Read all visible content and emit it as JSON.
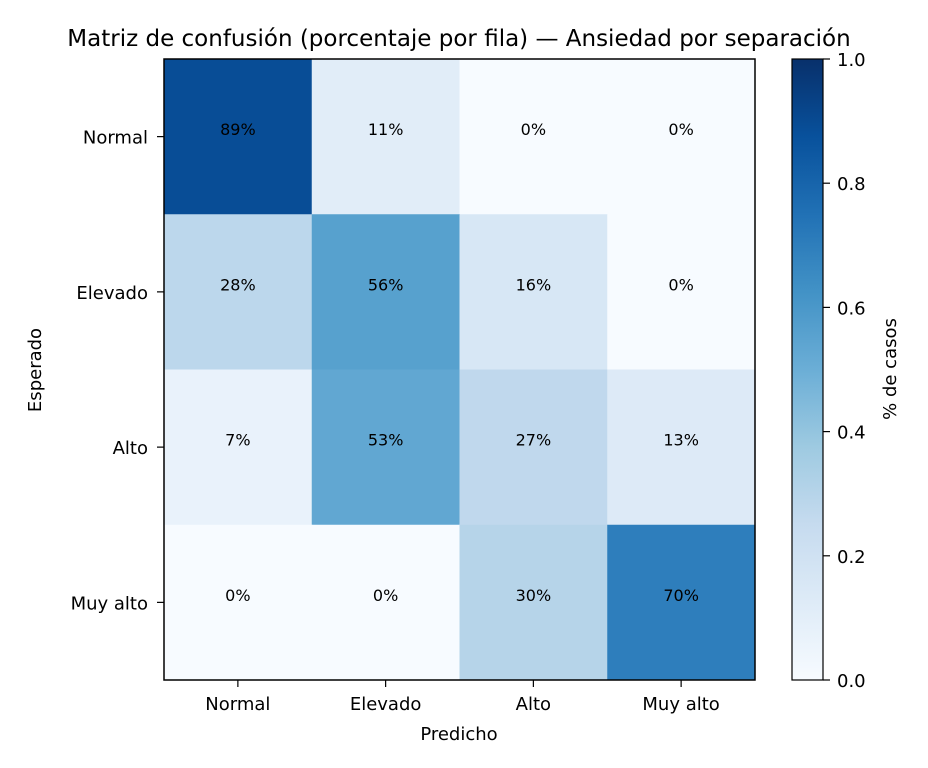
{
  "chart_data": {
    "type": "heatmap",
    "title": "Matriz de confusión (porcentaje por fila) — Ansiedad por separación",
    "xlabel": "Predicho",
    "ylabel": "Esperado",
    "x_categories": [
      "Normal",
      "Elevado",
      "Alto",
      "Muy alto"
    ],
    "y_categories": [
      "Normal",
      "Elevado",
      "Alto",
      "Muy alto"
    ],
    "values": [
      [
        0.89,
        0.11,
        0.0,
        0.0
      ],
      [
        0.28,
        0.56,
        0.16,
        0.0
      ],
      [
        0.07,
        0.53,
        0.27,
        0.13
      ],
      [
        0.0,
        0.0,
        0.3,
        0.7
      ]
    ],
    "cell_labels": [
      [
        "89%",
        "11%",
        "0%",
        "0%"
      ],
      [
        "28%",
        "56%",
        "16%",
        "0%"
      ],
      [
        "7%",
        "53%",
        "27%",
        "13%"
      ],
      [
        "0%",
        "0%",
        "30%",
        "70%"
      ]
    ],
    "colormap": "Blues",
    "colorbar": {
      "label": "% de casos",
      "range": [
        0,
        1
      ],
      "ticks": [
        "0.0",
        "0.2",
        "0.4",
        "0.6",
        "0.8",
        "1.0"
      ]
    }
  }
}
